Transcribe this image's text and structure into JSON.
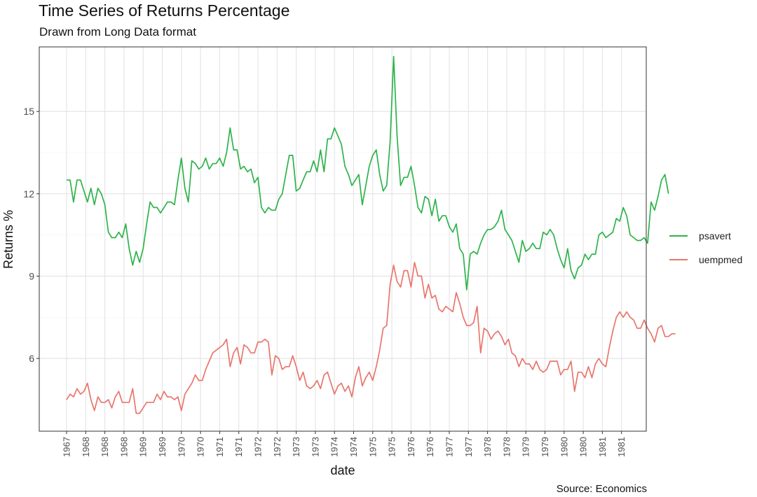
{
  "chart_data": {
    "type": "line",
    "title": "Time Series of Returns Percentage",
    "subtitle": "Drawn from Long Data format",
    "caption": "Source: Economics",
    "xlabel": "date",
    "ylabel": "Returns %",
    "ylim": [
      3.35,
      17.35
    ],
    "y_ticks": [
      6,
      9,
      12,
      15
    ],
    "x_tick_labels": [
      "1967",
      "1968",
      "1968",
      "1968",
      "1969",
      "1969",
      "1970",
      "1970",
      "1971",
      "1971",
      "1972",
      "1972",
      "1973",
      "1973",
      "1974",
      "1974",
      "1975",
      "1975",
      "1976",
      "1976",
      "1977",
      "1977",
      "1978",
      "1978",
      "1979",
      "1979",
      "1980",
      "1980",
      "1981",
      "1981"
    ],
    "x_range_months": [
      0,
      173
    ],
    "grid": true,
    "legend_position": "right",
    "colors": {
      "psavert": "#2db34a",
      "uempmed": "#e8766d"
    },
    "series": [
      {
        "name": "psavert",
        "values": [
          12.5,
          12.5,
          11.7,
          12.5,
          12.5,
          12.1,
          11.7,
          12.2,
          11.6,
          12.2,
          12.0,
          11.6,
          10.6,
          10.4,
          10.4,
          10.6,
          10.4,
          10.9,
          10.0,
          9.4,
          9.9,
          9.5,
          10.0,
          10.9,
          11.7,
          11.5,
          11.5,
          11.3,
          11.5,
          11.7,
          11.7,
          11.6,
          12.5,
          13.3,
          12.2,
          11.7,
          13.2,
          13.1,
          12.9,
          13.0,
          13.3,
          12.9,
          13.1,
          13.1,
          13.3,
          13.0,
          13.5,
          14.4,
          13.6,
          13.6,
          12.9,
          13.0,
          12.8,
          12.9,
          12.4,
          12.6,
          11.5,
          11.3,
          11.5,
          11.4,
          11.4,
          11.8,
          12.0,
          12.7,
          13.4,
          13.4,
          12.1,
          12.2,
          12.5,
          12.8,
          12.8,
          13.2,
          12.8,
          13.6,
          12.8,
          14.0,
          14.0,
          14.4,
          14.1,
          13.8,
          13.0,
          12.7,
          12.3,
          12.5,
          12.7,
          11.6,
          12.3,
          13.0,
          13.4,
          13.6,
          12.7,
          12.1,
          12.3,
          13.9,
          17.0,
          14.1,
          12.3,
          12.6,
          12.6,
          13.0,
          12.3,
          11.5,
          11.3,
          11.9,
          11.8,
          11.2,
          11.8,
          11.0,
          11.2,
          11.2,
          10.8,
          10.6,
          10.9,
          10.0,
          9.8,
          8.5,
          9.8,
          9.9,
          9.8,
          10.2,
          10.5,
          10.7,
          10.7,
          10.8,
          11.0,
          11.4,
          10.7,
          10.5,
          10.3,
          9.9,
          9.5,
          10.3,
          9.9,
          10.0,
          10.2,
          10.0,
          10.0,
          10.6,
          10.5,
          10.7,
          10.5,
          10.0,
          9.6,
          9.3,
          10.0,
          9.2,
          8.9,
          9.3,
          9.4,
          9.8,
          9.6,
          9.8,
          9.8,
          10.5,
          10.6,
          10.4,
          10.5,
          10.6,
          11.1,
          11.0,
          11.5,
          11.2,
          10.5,
          10.4,
          10.3,
          10.3,
          10.4,
          10.2,
          11.7,
          11.4,
          11.9,
          12.5,
          12.7,
          12.0
        ]
      },
      {
        "name": "uempmed",
        "values": [
          4.5,
          4.7,
          4.6,
          4.9,
          4.7,
          4.8,
          5.1,
          4.5,
          4.1,
          4.6,
          4.4,
          4.4,
          4.5,
          4.2,
          4.6,
          4.8,
          4.4,
          4.4,
          4.4,
          4.9,
          4.0,
          4.0,
          4.2,
          4.4,
          4.4,
          4.4,
          4.7,
          4.5,
          4.8,
          4.6,
          4.6,
          4.5,
          4.6,
          4.1,
          4.7,
          4.9,
          5.1,
          5.4,
          5.2,
          5.2,
          5.6,
          5.9,
          6.2,
          6.3,
          6.4,
          6.5,
          6.7,
          5.7,
          6.2,
          6.4,
          5.8,
          6.5,
          6.4,
          6.2,
          6.2,
          6.6,
          6.6,
          6.7,
          6.6,
          5.4,
          6.1,
          6.0,
          5.6,
          5.7,
          5.7,
          6.1,
          5.7,
          5.2,
          5.5,
          5.0,
          4.9,
          5.0,
          5.2,
          4.9,
          5.4,
          5.5,
          5.1,
          4.7,
          5.0,
          5.1,
          4.8,
          5.0,
          4.6,
          5.3,
          5.7,
          5.0,
          5.3,
          5.5,
          5.2,
          5.7,
          6.3,
          7.1,
          7.2,
          8.7,
          9.4,
          8.8,
          8.6,
          9.2,
          9.2,
          8.6,
          9.5,
          9.0,
          9.0,
          8.2,
          8.7,
          8.2,
          8.3,
          7.8,
          7.7,
          7.9,
          7.8,
          7.7,
          8.4,
          8.0,
          7.5,
          7.2,
          7.2,
          7.3,
          7.9,
          6.2,
          7.1,
          7.0,
          6.7,
          6.9,
          7.0,
          6.8,
          6.5,
          6.7,
          6.2,
          6.1,
          5.7,
          6.0,
          5.8,
          5.8,
          5.6,
          5.9,
          5.6,
          5.5,
          5.6,
          5.9,
          5.9,
          5.9,
          5.4,
          5.6,
          5.6,
          5.9,
          4.8,
          5.5,
          5.5,
          5.3,
          5.7,
          5.3,
          5.8,
          6.0,
          5.8,
          5.7,
          6.4,
          7.0,
          7.5,
          7.7,
          7.5,
          7.7,
          7.5,
          7.4,
          7.1,
          7.1,
          7.4,
          7.1,
          6.9,
          6.6,
          7.1,
          7.2,
          6.8,
          6.8,
          6.9,
          6.9
        ]
      }
    ]
  }
}
